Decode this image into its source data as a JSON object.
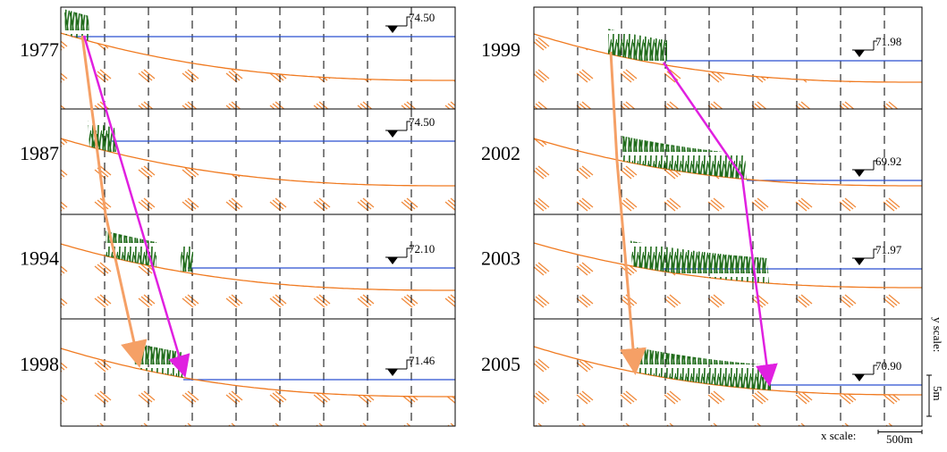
{
  "panels": [
    {
      "year": "1977",
      "water_level": "74.50"
    },
    {
      "year": "1987",
      "water_level": "74.50"
    },
    {
      "year": "1994",
      "water_level": "72.10"
    },
    {
      "year": "1998",
      "water_level": "71.46"
    },
    {
      "year": "1999",
      "water_level": "71.98"
    },
    {
      "year": "2002",
      "water_level": "69.92"
    },
    {
      "year": "2003",
      "water_level": "71.97"
    },
    {
      "year": "2005",
      "water_level": "70.90"
    }
  ],
  "scale": {
    "y_label": "y scale:",
    "y_value": "5m",
    "x_label": "x scale:",
    "x_value": "500m"
  }
}
